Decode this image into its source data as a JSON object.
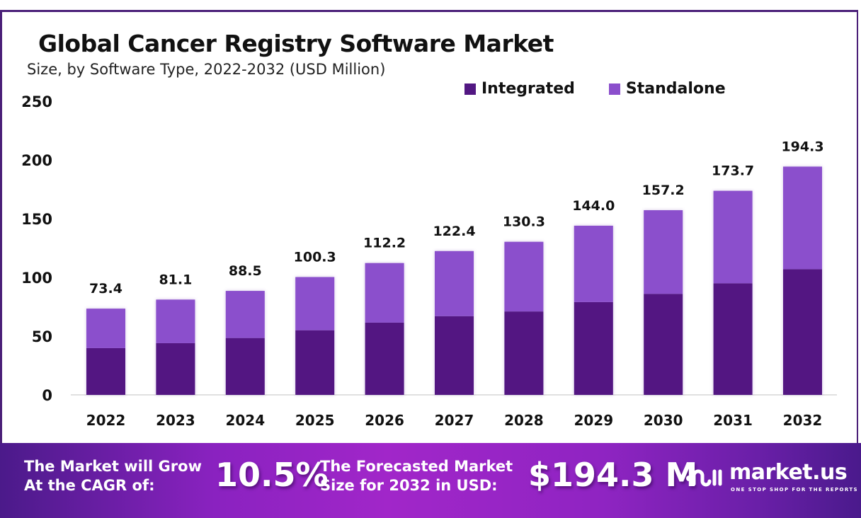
{
  "header": {
    "title": "Global Cancer Registry Software Market",
    "subtitle": "Size, by Software Type, 2022-2032 (USD Million)"
  },
  "legend": [
    {
      "label": "Integrated",
      "color": "#521782"
    },
    {
      "label": "Standalone",
      "color": "#8b4fcc"
    }
  ],
  "chart_data": {
    "type": "bar",
    "stacked": true,
    "title": "Global Cancer Registry Software Market",
    "subtitle": "Size, by Software Type, 2022-2032 (USD Million)",
    "xlabel": "",
    "ylabel": "",
    "ylim": [
      0,
      250
    ],
    "yticks": [
      0,
      50,
      100,
      150,
      200,
      250
    ],
    "grid": false,
    "legend_position": "top-right",
    "categories": [
      "2022",
      "2023",
      "2024",
      "2025",
      "2026",
      "2027",
      "2028",
      "2029",
      "2030",
      "2031",
      "2032"
    ],
    "series": [
      {
        "name": "Integrated",
        "color": "#521782",
        "values": [
          39.8,
          44.0,
          48.4,
          55.0,
          61.5,
          67.0,
          71.0,
          79.0,
          86.0,
          95.0,
          107.0
        ]
      },
      {
        "name": "Standalone",
        "color": "#8b4fcc",
        "values": [
          33.6,
          37.1,
          40.1,
          45.3,
          50.7,
          55.4,
          59.3,
          65.0,
          71.2,
          78.7,
          87.3
        ]
      }
    ],
    "totals": [
      73.4,
      81.1,
      88.5,
      100.3,
      112.2,
      122.4,
      130.3,
      144.0,
      157.2,
      173.7,
      194.3
    ],
    "total_labels": [
      "73.4",
      "81.1",
      "88.5",
      "100.3",
      "112.2",
      "122.4",
      "130.3",
      "144.0",
      "157.2",
      "173.7",
      "194.3"
    ]
  },
  "banner": {
    "cagr_label_line1": "The Market will Grow",
    "cagr_label_line2": "At the CAGR of:",
    "cagr_value": "10.5%",
    "forecast_label_line1": "The Forecasted Market",
    "forecast_label_line2": "Size for 2032 in USD:",
    "forecast_value": "$194.3 M",
    "brand_name": "market.us",
    "brand_tagline": "ONE STOP SHOP FOR THE REPORTS",
    "brand_icon": "market-us-logo-icon"
  }
}
